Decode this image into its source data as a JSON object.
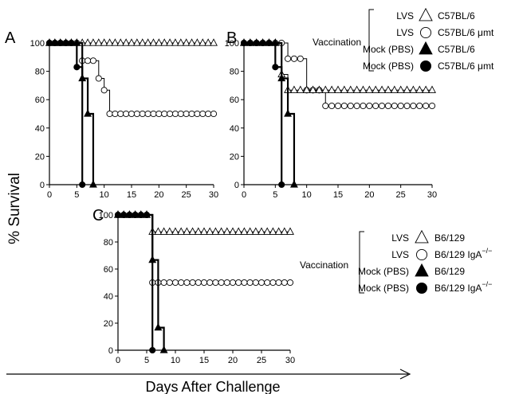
{
  "figure": {
    "ylabel": "% Survival",
    "xlabel": "Days After Challenge"
  },
  "legend_top": {
    "group_label": "Vaccination",
    "entries": [
      {
        "treatment": "LVS",
        "strain": "C57BL/6",
        "marker": "open-triangle"
      },
      {
        "treatment": "LVS",
        "strain": "C57BL/6 μmt",
        "marker": "open-circle"
      },
      {
        "treatment": "Mock (PBS)",
        "strain": "C57BL/6",
        "marker": "filled-triangle"
      },
      {
        "treatment": "Mock (PBS)",
        "strain": "C57BL/6 μmt",
        "marker": "filled-circle"
      }
    ]
  },
  "legend_bottom": {
    "group_label": "Vaccination",
    "entries": [
      {
        "treatment": "LVS",
        "strain": "B6/129",
        "marker": "open-triangle"
      },
      {
        "treatment": "LVS",
        "strain": "B6/129 IgA",
        "superscript": "−/−",
        "marker": "open-circle"
      },
      {
        "treatment": "Mock (PBS)",
        "strain": "B6/129",
        "marker": "filled-triangle"
      },
      {
        "treatment": "Mock (PBS)",
        "strain": "B6/129 IgA",
        "superscript": "−/−",
        "marker": "filled-circle"
      }
    ]
  },
  "chart_data": [
    {
      "panel": "A",
      "type": "line",
      "xlim": [
        0,
        30
      ],
      "ylim": [
        0,
        100
      ],
      "xticks": [
        0,
        5,
        10,
        15,
        20,
        25,
        30
      ],
      "yticks": [
        0,
        20,
        40,
        60,
        80,
        100
      ],
      "series": [
        {
          "name": "LVS C57BL/6",
          "marker": "open-triangle",
          "x": [
            0,
            1,
            2,
            3,
            4,
            5,
            6,
            7,
            8,
            9,
            10,
            11,
            12,
            13,
            14,
            15,
            16,
            17,
            18,
            19,
            20,
            21,
            22,
            23,
            24,
            25,
            26,
            27,
            28,
            29,
            30
          ],
          "y": [
            100,
            100,
            100,
            100,
            100,
            100,
            100,
            100,
            100,
            100,
            100,
            100,
            100,
            100,
            100,
            100,
            100,
            100,
            100,
            100,
            100,
            100,
            100,
            100,
            100,
            100,
            100,
            100,
            100,
            100,
            100
          ]
        },
        {
          "name": "LVS C57BL/6 μmt",
          "marker": "open-circle",
          "x": [
            0,
            1,
            2,
            3,
            4,
            5,
            6,
            7,
            8,
            9,
            10,
            11,
            12,
            13,
            14,
            15,
            16,
            17,
            18,
            19,
            20,
            21,
            22,
            23,
            24,
            25,
            26,
            27,
            28,
            29,
            30
          ],
          "y": [
            100,
            100,
            100,
            100,
            100,
            100,
            87.5,
            87.5,
            87.5,
            75,
            66.7,
            50,
            50,
            50,
            50,
            50,
            50,
            50,
            50,
            50,
            50,
            50,
            50,
            50,
            50,
            50,
            50,
            50,
            50,
            50,
            50
          ]
        },
        {
          "name": "Mock (PBS) C57BL/6",
          "marker": "filled-triangle",
          "x": [
            0,
            1,
            2,
            3,
            4,
            5,
            6,
            7,
            8
          ],
          "y": [
            100,
            100,
            100,
            100,
            100,
            100,
            75,
            50,
            0
          ]
        },
        {
          "name": "Mock (PBS) C57BL/6 μmt",
          "marker": "filled-circle",
          "x": [
            0,
            1,
            2,
            3,
            4,
            5,
            6
          ],
          "y": [
            100,
            100,
            100,
            100,
            100,
            83,
            0
          ]
        }
      ]
    },
    {
      "panel": "B",
      "type": "line",
      "xlim": [
        0,
        30
      ],
      "ylim": [
        0,
        100
      ],
      "xticks": [
        0,
        5,
        10,
        15,
        20,
        25,
        30
      ],
      "yticks": [
        0,
        20,
        40,
        60,
        80,
        100
      ],
      "series": [
        {
          "name": "LVS C57BL/6",
          "marker": "open-triangle",
          "x": [
            0,
            1,
            2,
            3,
            4,
            5,
            6,
            7,
            8,
            9,
            10,
            11,
            12,
            13,
            14,
            15,
            16,
            17,
            18,
            19,
            20,
            21,
            22,
            23,
            24,
            25,
            26,
            27,
            28,
            29,
            30
          ],
          "y": [
            100,
            100,
            100,
            100,
            100,
            100,
            77.8,
            66.7,
            66.7,
            66.7,
            66.7,
            66.7,
            66.7,
            66.7,
            66.7,
            66.7,
            66.7,
            66.7,
            66.7,
            66.7,
            66.7,
            66.7,
            66.7,
            66.7,
            66.7,
            66.7,
            66.7,
            66.7,
            66.7,
            66.7,
            66.7
          ]
        },
        {
          "name": "LVS C57BL/6 μmt",
          "marker": "open-circle",
          "x": [
            0,
            1,
            2,
            3,
            4,
            5,
            6,
            7,
            8,
            9,
            10,
            11,
            12,
            13,
            14,
            15,
            16,
            17,
            18,
            19,
            20,
            21,
            22,
            23,
            24,
            25,
            26,
            27,
            28,
            29,
            30
          ],
          "y": [
            100,
            100,
            100,
            100,
            100,
            100,
            100,
            88.9,
            88.9,
            88.9,
            66.7,
            66.7,
            66.7,
            55.6,
            55.6,
            55.6,
            55.6,
            55.6,
            55.6,
            55.6,
            55.6,
            55.6,
            55.6,
            55.6,
            55.6,
            55.6,
            55.6,
            55.6,
            55.6,
            55.6,
            55.6
          ]
        },
        {
          "name": "Mock (PBS) C57BL/6",
          "marker": "filled-triangle",
          "x": [
            0,
            1,
            2,
            3,
            4,
            5,
            6,
            7,
            8
          ],
          "y": [
            100,
            100,
            100,
            100,
            100,
            100,
            75,
            50,
            0
          ]
        },
        {
          "name": "Mock (PBS) C57BL/6 μmt",
          "marker": "filled-circle",
          "x": [
            0,
            1,
            2,
            3,
            4,
            5,
            6
          ],
          "y": [
            100,
            100,
            100,
            100,
            100,
            83,
            0
          ]
        }
      ]
    },
    {
      "panel": "C",
      "type": "line",
      "xlim": [
        0,
        30
      ],
      "ylim": [
        0,
        100
      ],
      "xticks": [
        0,
        5,
        10,
        15,
        20,
        25,
        30
      ],
      "yticks": [
        0,
        20,
        40,
        60,
        80,
        100
      ],
      "series": [
        {
          "name": "LVS B6/129",
          "marker": "open-triangle",
          "x": [
            0,
            1,
            2,
            3,
            4,
            5,
            6,
            7,
            8,
            9,
            10,
            11,
            12,
            13,
            14,
            15,
            16,
            17,
            18,
            19,
            20,
            21,
            22,
            23,
            24,
            25,
            26,
            27,
            28,
            29,
            30
          ],
          "y": [
            100,
            100,
            100,
            100,
            100,
            100,
            87.5,
            87.5,
            87.5,
            87.5,
            87.5,
            87.5,
            87.5,
            87.5,
            87.5,
            87.5,
            87.5,
            87.5,
            87.5,
            87.5,
            87.5,
            87.5,
            87.5,
            87.5,
            87.5,
            87.5,
            87.5,
            87.5,
            87.5,
            87.5,
            87.5
          ]
        },
        {
          "name": "LVS B6/129 IgA−/−",
          "marker": "open-circle",
          "x": [
            0,
            1,
            2,
            3,
            4,
            5,
            6,
            7,
            8,
            9,
            10,
            11,
            12,
            13,
            14,
            15,
            16,
            17,
            18,
            19,
            20,
            21,
            22,
            23,
            24,
            25,
            26,
            27,
            28,
            29,
            30
          ],
          "y": [
            100,
            100,
            100,
            100,
            100,
            100,
            50,
            50,
            50,
            50,
            50,
            50,
            50,
            50,
            50,
            50,
            50,
            50,
            50,
            50,
            50,
            50,
            50,
            50,
            50,
            50,
            50,
            50,
            50,
            50,
            50
          ]
        },
        {
          "name": "Mock (PBS) B6/129",
          "marker": "filled-triangle",
          "x": [
            0,
            1,
            2,
            3,
            4,
            5,
            6,
            7,
            8
          ],
          "y": [
            100,
            100,
            100,
            100,
            100,
            100,
            66.7,
            16.7,
            0
          ]
        },
        {
          "name": "Mock (PBS) B6/129 IgA−/−",
          "marker": "filled-circle",
          "x": [
            0,
            1,
            2,
            3,
            4,
            5,
            6
          ],
          "y": [
            100,
            100,
            100,
            100,
            100,
            100,
            0
          ]
        }
      ]
    }
  ]
}
